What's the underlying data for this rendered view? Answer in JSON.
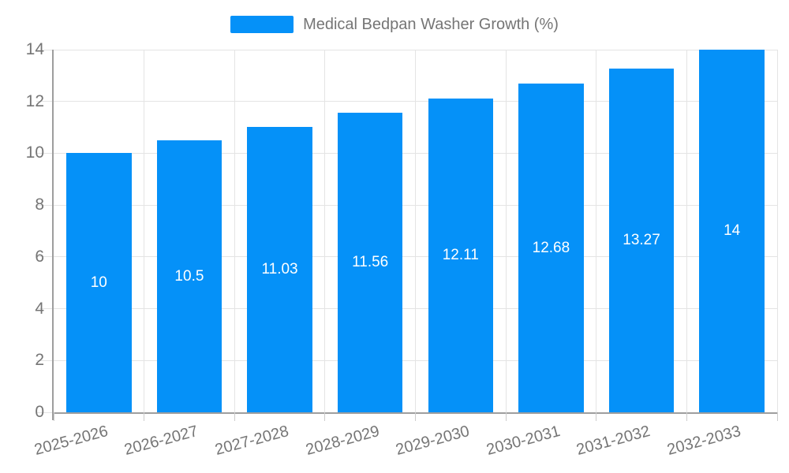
{
  "chart_data": {
    "type": "bar",
    "title": "Medical Bedpan Washer Growth (%)",
    "legend_entries": [
      "Medical Bedpan Washer Growth (%)"
    ],
    "legend_position": "top",
    "categories": [
      "2025-2026",
      "2026-2027",
      "2027-2028",
      "2028-2029",
      "2029-2030",
      "2030-2031",
      "2031-2032",
      "2032-2033"
    ],
    "values": [
      10,
      10.5,
      11.03,
      11.56,
      12.11,
      12.68,
      13.27,
      14
    ],
    "bar_labels": [
      "10",
      "10.5",
      "11.03",
      "11.56",
      "12.11",
      "12.68",
      "13.27",
      "14"
    ],
    "xlabel": "",
    "ylabel": "",
    "ylim": [
      0,
      14
    ],
    "yticks": [
      0,
      2,
      4,
      6,
      8,
      10,
      12,
      14
    ],
    "grid": true,
    "x_label_rotation_deg": -15
  },
  "colors": {
    "bar": "#0591f8",
    "axis_line": "#9e9e9e",
    "grid_line": "#e4e4e4",
    "tick_mark": "#cccccc",
    "tick_label": "#757575",
    "legend_text": "#757575",
    "bar_label": "#ffffff",
    "background": "#ffffff"
  }
}
